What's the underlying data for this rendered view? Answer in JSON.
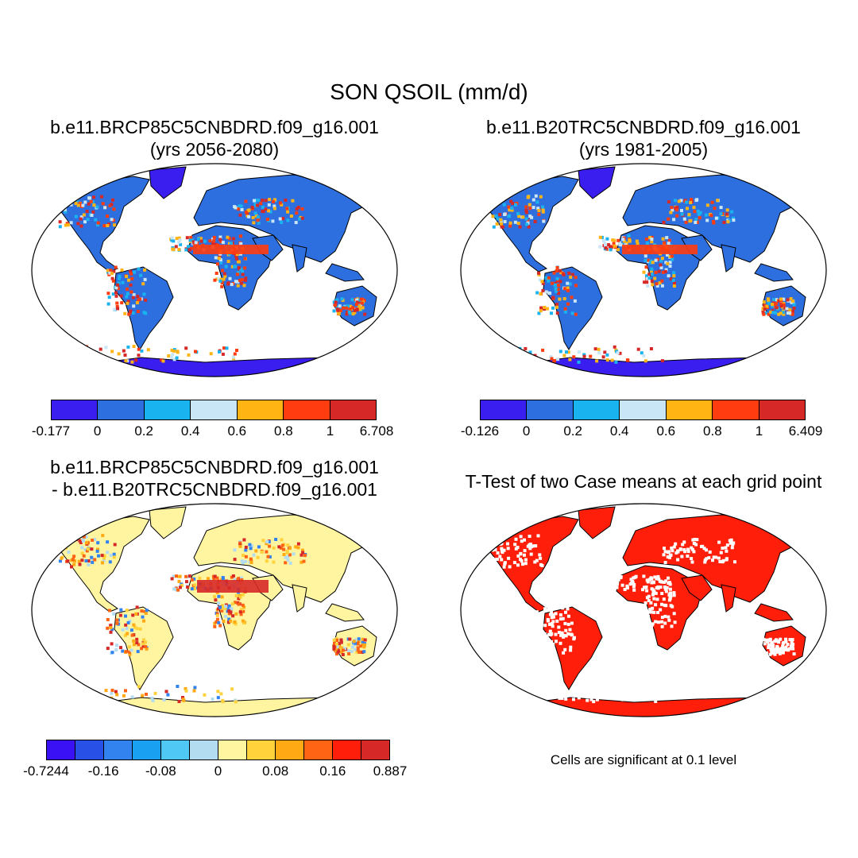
{
  "title": "SON QSOIL (mm/d)",
  "panels": [
    {
      "title_line1": "b.e11.BRCP85C5CNBDRD.f09_g16.001",
      "title_line2": "(yrs 2056-2080)",
      "colorbar": {
        "colors": [
          "#3a1ef0",
          "#2e6fe0",
          "#19b4f0",
          "#c8e6f5",
          "#ffb414",
          "#ff3c0f",
          "#d72828"
        ],
        "labels": [
          "-0.177",
          "0",
          "0.2",
          "0.4",
          "0.6",
          "0.8",
          "1",
          "6.708"
        ]
      }
    },
    {
      "title_line1": "b.e11.B20TRC5CNBDRD.f09_g16.001",
      "title_line2": "(yrs 1981-2005)",
      "colorbar": {
        "colors": [
          "#3a1ef0",
          "#2e6fe0",
          "#19b4f0",
          "#c8e6f5",
          "#ffb414",
          "#ff3c0f",
          "#d72828"
        ],
        "labels": [
          "-0.126",
          "0",
          "0.2",
          "0.4",
          "0.6",
          "0.8",
          "1",
          "6.409"
        ]
      }
    },
    {
      "title_line1": "b.e11.BRCP85C5CNBDRD.f09_g16.001",
      "title_line2": "- b.e11.B20TRC5CNBDRD.f09_g16.001",
      "colorbar": {
        "colors": [
          "#3a10f5",
          "#2850e6",
          "#3282f0",
          "#19a0f0",
          "#50c8f5",
          "#b4dcf0",
          "#fff5a0",
          "#ffd23c",
          "#ffaa14",
          "#ff6414",
          "#ff1e0a",
          "#d72828"
        ],
        "labels": [
          "-0.7244",
          "-0.16",
          "-0.08",
          "0",
          "0.08",
          "0.16",
          "0.887"
        ]
      }
    },
    {
      "title_line1": "T-Test of two Case means at each grid point",
      "note": "Cells are significant at 0.1 level"
    }
  ]
}
